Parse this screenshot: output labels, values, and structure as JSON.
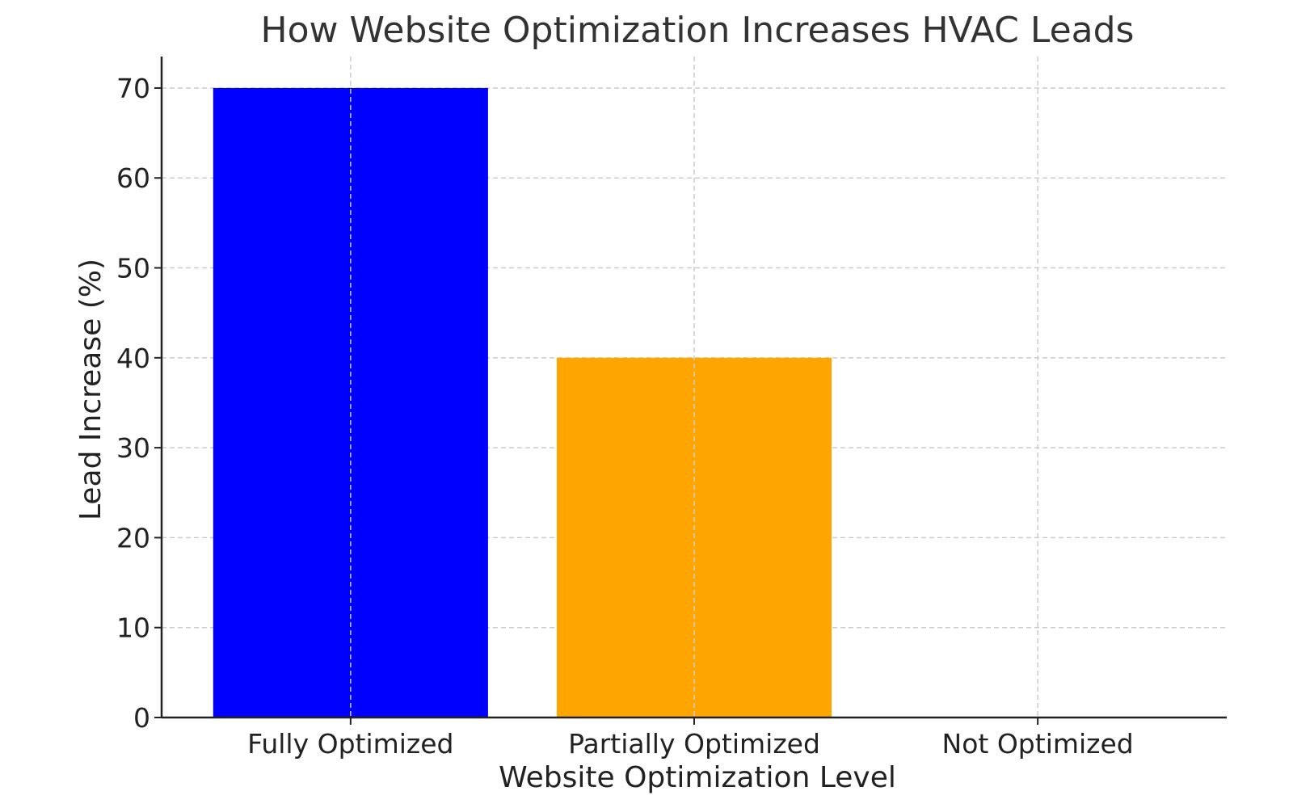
{
  "chart_data": {
    "type": "bar",
    "title": "How Website Optimization Increases HVAC Leads",
    "xlabel": "Website Optimization Level",
    "ylabel": "Lead Increase (%)",
    "categories": [
      "Fully Optimized",
      "Partially Optimized",
      "Not Optimized"
    ],
    "values": [
      70,
      40,
      0
    ],
    "colors": [
      "#0000ff",
      "#ffa500",
      "#ffffff"
    ],
    "ylim": [
      0,
      73.5
    ],
    "yticks": [
      0,
      10,
      20,
      30,
      40,
      50,
      60,
      70
    ],
    "grid": true
  }
}
